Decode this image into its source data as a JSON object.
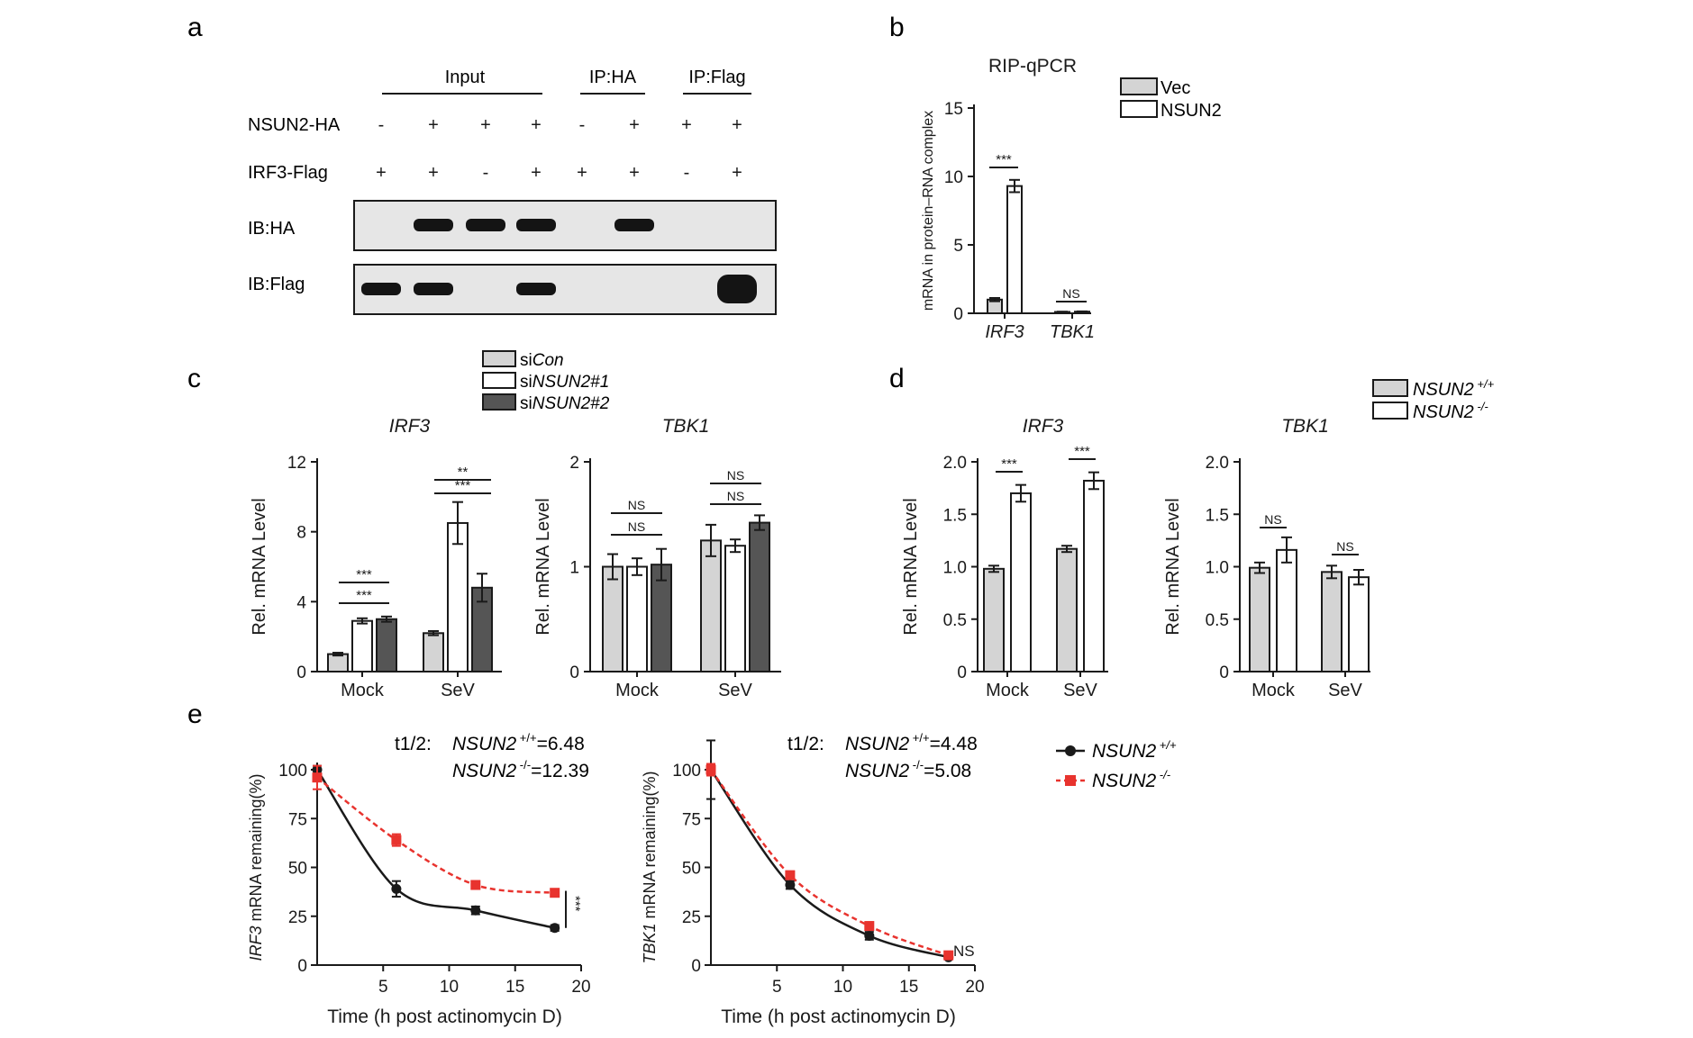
{
  "colors": {
    "ink": "#1a1a1a",
    "light_gray": "#d4d4d4",
    "white": "#ffffff",
    "dark_gray": "#555555",
    "red": "#e8332e",
    "blot_bg": "#e6e6e6",
    "band": "#141414"
  },
  "panel_a": {
    "letter": "a",
    "group_labels": [
      "Input",
      "IP:HA",
      "IP:Flag"
    ],
    "row_labels": [
      "NSUN2-HA",
      "IRF3-Flag"
    ],
    "signs": [
      [
        "-",
        "+",
        "+",
        "+",
        "-",
        "+",
        "+",
        "+"
      ],
      [
        "+",
        "+",
        "-",
        "+",
        "+",
        "+",
        "-",
        "+"
      ]
    ],
    "blot_labels": [
      "IB:HA",
      "IB:Flag"
    ],
    "bands": [
      [
        0,
        1,
        1,
        1,
        0,
        1,
        0,
        0
      ],
      [
        1,
        1,
        0,
        1,
        0,
        0,
        0,
        1
      ]
    ]
  },
  "chart_data": [
    {
      "panel": "b",
      "type": "bar",
      "title": "RIP-qPCR",
      "ylabel": "mRNA in protein–RNA complex",
      "xlabel": "",
      "ylim": [
        0,
        15
      ],
      "yticks": [
        "0",
        "5",
        "10",
        "15"
      ],
      "categories": [
        "IRF3",
        "TBK1"
      ],
      "series": [
        {
          "name": "Vec",
          "color": "#d4d4d4",
          "values": [
            1.0,
            0.1
          ],
          "errors": [
            0.12,
            0.02
          ]
        },
        {
          "name": "NSUN2",
          "color": "#ffffff",
          "values": [
            9.3,
            0.12
          ],
          "errors": [
            0.45,
            0.02
          ]
        }
      ],
      "legend": [
        "Vec",
        "NSUN2"
      ],
      "annotations": [
        "***",
        "NS"
      ]
    },
    {
      "panel": "c",
      "type": "bar",
      "title": "IRF3",
      "ylabel": "Rel. mRNA Level",
      "ylim": [
        0,
        12
      ],
      "yticks": [
        "0",
        "4",
        "8",
        "12"
      ],
      "categories": [
        "Mock",
        "SeV"
      ],
      "series": [
        {
          "name": "siCon",
          "color": "#d4d4d4",
          "values": [
            1.0,
            2.2
          ],
          "errors": [
            0.08,
            0.12
          ]
        },
        {
          "name": "siNSUN2#1",
          "color": "#ffffff",
          "values": [
            2.9,
            8.5
          ],
          "errors": [
            0.15,
            1.2
          ]
        },
        {
          "name": "siNSUN2#2",
          "color": "#555555",
          "values": [
            3.0,
            4.8
          ],
          "errors": [
            0.15,
            0.8
          ]
        }
      ],
      "annotations": [
        "***",
        "***",
        "**",
        "***"
      ]
    },
    {
      "panel": "c",
      "type": "bar",
      "title": "TBK1",
      "ylabel": "Rel. mRNA Level",
      "ylim": [
        0,
        2
      ],
      "yticks": [
        "0",
        "1",
        "2"
      ],
      "categories": [
        "Mock",
        "SeV"
      ],
      "series": [
        {
          "name": "siCon",
          "color": "#d4d4d4",
          "values": [
            1.0,
            1.25
          ],
          "errors": [
            0.12,
            0.15
          ]
        },
        {
          "name": "siNSUN2#1",
          "color": "#ffffff",
          "values": [
            1.0,
            1.2
          ],
          "errors": [
            0.08,
            0.06
          ]
        },
        {
          "name": "siNSUN2#2",
          "color": "#555555",
          "values": [
            1.02,
            1.42
          ],
          "errors": [
            0.15,
            0.07
          ]
        }
      ],
      "annotations": [
        "NS",
        "NS",
        "NS",
        "NS"
      ]
    },
    {
      "panel": "d",
      "type": "bar",
      "title": "IRF3",
      "ylabel": "Rel. mRNA Level",
      "ylim": [
        0,
        2.0
      ],
      "yticks": [
        "0",
        "0.5",
        "1.0",
        "1.5",
        "2.0"
      ],
      "categories": [
        "Mock",
        "SeV"
      ],
      "series": [
        {
          "name": "NSUN2 +/+",
          "color": "#d4d4d4",
          "values": [
            0.98,
            1.17
          ],
          "errors": [
            0.03,
            0.03
          ]
        },
        {
          "name": "NSUN2 -/-",
          "color": "#ffffff",
          "values": [
            1.7,
            1.82
          ],
          "errors": [
            0.08,
            0.08
          ]
        }
      ],
      "annotations": [
        "***",
        "***"
      ]
    },
    {
      "panel": "d",
      "type": "bar",
      "title": "TBK1",
      "ylabel": "Rel. mRNA Level",
      "ylim": [
        0,
        2.0
      ],
      "yticks": [
        "0",
        "0.5",
        "1.0",
        "1.5",
        "2.0"
      ],
      "categories": [
        "Mock",
        "SeV"
      ],
      "series": [
        {
          "name": "NSUN2 +/+",
          "color": "#d4d4d4",
          "values": [
            0.99,
            0.95
          ],
          "errors": [
            0.05,
            0.06
          ]
        },
        {
          "name": "NSUN2 -/-",
          "color": "#ffffff",
          "values": [
            1.16,
            0.9
          ],
          "errors": [
            0.12,
            0.07
          ]
        }
      ],
      "annotations": [
        "NS",
        "NS"
      ]
    },
    {
      "panel": "e",
      "type": "line",
      "xlabel": "Time (h post actinomycin D)",
      "ylabel_prefix": "IRF3",
      "ylabel_suffix": " mRNA remaining(%)",
      "xlim": [
        0,
        20
      ],
      "ylim": [
        0,
        100
      ],
      "xticks": [
        "5",
        "10",
        "15",
        "20"
      ],
      "yticks": [
        "0",
        "25",
        "50",
        "75",
        "100"
      ],
      "halflife_prefix": "t1/2:",
      "halflives": [
        "=6.48",
        "=12.39"
      ],
      "series": [
        {
          "name": "NSUN2 +/+",
          "color": "#1a1a1a",
          "dashed": false,
          "marker": "circle",
          "x": [
            0,
            6,
            12,
            18
          ],
          "y": [
            100,
            39,
            28,
            19
          ],
          "errors": [
            2,
            4,
            2,
            1.5
          ]
        },
        {
          "name": "NSUN2 -/-",
          "color": "#e8332e",
          "dashed": true,
          "marker": "square",
          "x": [
            0,
            6,
            12,
            18
          ],
          "y": [
            96,
            64,
            41,
            37
          ],
          "errors": [
            6,
            3,
            2,
            1.5
          ]
        }
      ],
      "annotations": [
        "***"
      ]
    },
    {
      "panel": "e",
      "type": "line",
      "xlabel": "Time (h post actinomycin D)",
      "ylabel_prefix": "TBK1",
      "ylabel_suffix": " mRNA remaining(%)",
      "xlim": [
        0,
        20
      ],
      "ylim": [
        0,
        100
      ],
      "xticks": [
        "5",
        "10",
        "15",
        "20"
      ],
      "yticks": [
        "0",
        "25",
        "50",
        "75",
        "100"
      ],
      "halflife_prefix": "t1/2:",
      "halflives": [
        "=4.48",
        "=5.08"
      ],
      "series": [
        {
          "name": "NSUN2 +/+",
          "color": "#1a1a1a",
          "dashed": false,
          "marker": "circle",
          "x": [
            0,
            6,
            12,
            18
          ],
          "y": [
            100,
            41,
            15,
            4
          ],
          "errors": [
            15,
            2,
            2,
            1
          ]
        },
        {
          "name": "NSUN2 -/-",
          "color": "#e8332e",
          "dashed": true,
          "marker": "square",
          "x": [
            0,
            6,
            12,
            18
          ],
          "y": [
            100,
            46,
            20,
            5
          ],
          "errors": [
            3,
            2,
            2,
            1
          ]
        }
      ],
      "annotations": [
        "NS"
      ]
    }
  ],
  "panel_letters": [
    "b",
    "c",
    "d",
    "e"
  ],
  "legend_c": [
    {
      "prefix": "si",
      "italic": "Con",
      "suffix": ""
    },
    {
      "prefix": "si",
      "italic": "NSUN2#1",
      "suffix": ""
    },
    {
      "prefix": "si",
      "italic": "NSUN2#2",
      "suffix": ""
    }
  ],
  "genotype_labels": [
    {
      "name": "NSUN2",
      "sup": " +/+"
    },
    {
      "name": "NSUN2",
      "sup": " -/-"
    }
  ]
}
